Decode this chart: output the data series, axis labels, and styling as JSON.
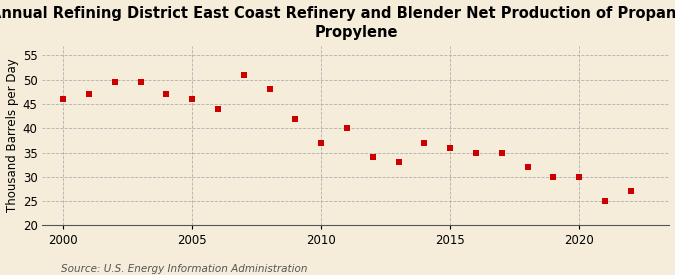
{
  "title": "Annual Refining District East Coast Refinery and Blender Net Production of Propane and\nPropylene",
  "ylabel": "Thousand Barrels per Day",
  "source": "Source: U.S. Energy Information Administration",
  "years": [
    2000,
    2001,
    2002,
    2003,
    2004,
    2005,
    2006,
    2007,
    2008,
    2009,
    2010,
    2011,
    2012,
    2013,
    2014,
    2015,
    2016,
    2017,
    2018,
    2019,
    2020,
    2021,
    2022
  ],
  "values": [
    46,
    47,
    49.5,
    49.5,
    47,
    46,
    44,
    51,
    48,
    42,
    37,
    40,
    34,
    33,
    37,
    36,
    35,
    35,
    32,
    30,
    30,
    25,
    27
  ],
  "marker_color": "#cc0000",
  "background_color": "#f5edda",
  "grid_color": "#b0b0b0",
  "ylim": [
    20,
    57
  ],
  "yticks": [
    20,
    25,
    30,
    35,
    40,
    45,
    50,
    55
  ],
  "xlim": [
    1999.2,
    2023.5
  ],
  "xticks": [
    2000,
    2005,
    2010,
    2015,
    2020
  ],
  "title_fontsize": 10.5,
  "axis_fontsize": 8.5,
  "source_fontsize": 7.5
}
